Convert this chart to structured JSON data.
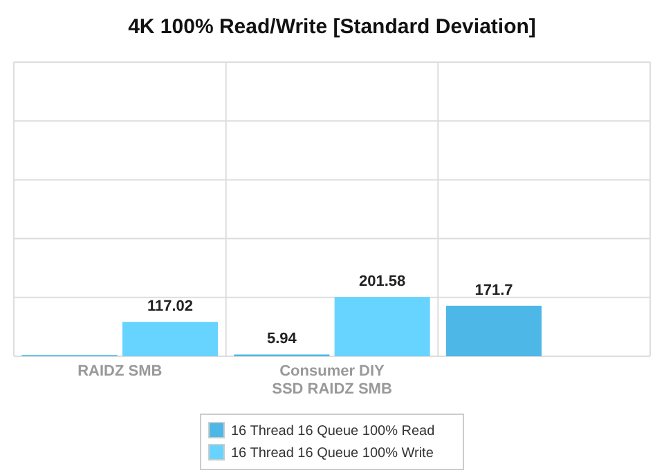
{
  "chart_data": {
    "type": "bar",
    "title": "4K 100% Read/Write [Standard Deviation]",
    "categories": [
      "RAIDZ SMB",
      "Consumer DIY SSD RAIDZ SMB",
      null
    ],
    "series": [
      {
        "name": "16 Thread 16 Queue 100% Read",
        "color": "#4db8e8",
        "values": [
          4,
          5.94,
          171.7
        ],
        "value_labels": [
          null,
          "5.94",
          "171.7"
        ]
      },
      {
        "name": "16 Thread 16 Queue 100% Write",
        "color": "#66d4ff",
        "values": [
          117.02,
          201.58,
          null
        ],
        "value_labels": [
          "117.02",
          "201.58",
          null
        ]
      }
    ],
    "ylim": [
      0,
      1000
    ],
    "yticks": [
      {
        "value": 0,
        "label": null
      },
      {
        "value": 200,
        "label": null
      },
      {
        "value": 400,
        "label": null
      },
      {
        "value": 600,
        "label": null
      },
      {
        "value": 800,
        "label": null
      },
      {
        "value": 1000,
        "label": null
      }
    ],
    "grid": true,
    "legend": "bottom",
    "tick_labels": "x"
  }
}
